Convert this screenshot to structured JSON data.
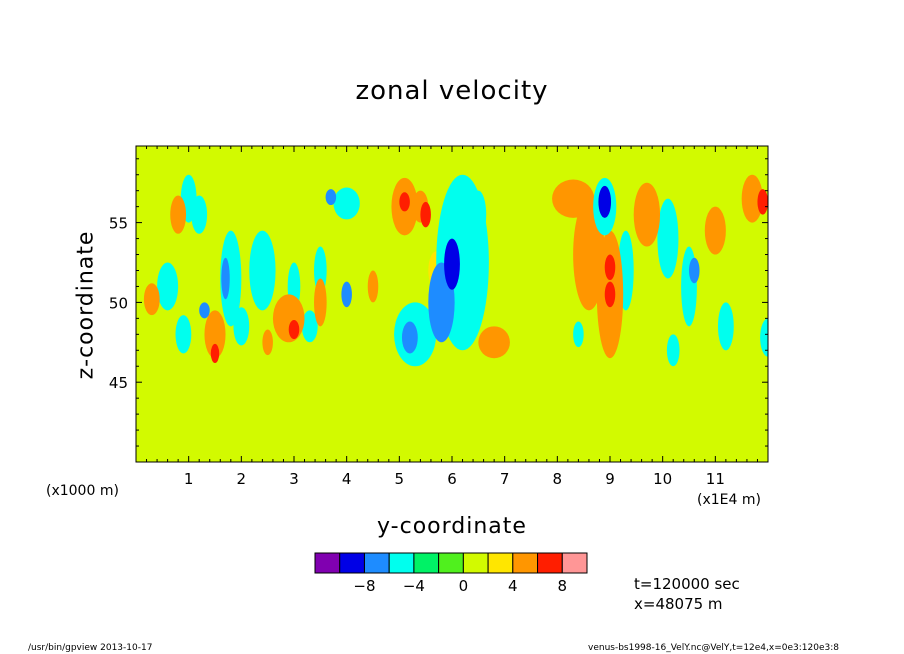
{
  "chart_data": {
    "type": "heatmap",
    "title": "zonal velocity",
    "xlabel": "y-coordinate",
    "ylabel": "z-coordinate",
    "x_unit_label": "(x1000 m)",
    "y_unit_label": "(x1E4 m)",
    "xlim": [
      0,
      120
    ],
    "ylim": [
      40,
      59.8
    ],
    "x_ticks": [
      "1",
      "2",
      "3",
      "4",
      "5",
      "6",
      "7",
      "8",
      "9",
      "10",
      "11"
    ],
    "y_ticks": [
      "45",
      "50",
      "55"
    ],
    "colorbar": {
      "levels": [
        -10,
        -8,
        -6,
        -4,
        -2,
        0,
        2,
        4,
        6,
        8,
        10
      ],
      "tick_labels": [
        "-8",
        "-4",
        "0",
        "4",
        "8"
      ],
      "colors": [
        "#8000b0",
        "#0000e6",
        "#1e8cff",
        "#00ffee",
        "#00f266",
        "#50f01e",
        "#d2fa00",
        "#ffe600",
        "#ff9600",
        "#ff1e00",
        "#ff9696"
      ]
    },
    "blobs": [
      {
        "x": 40,
        "y": 56.2,
        "rx": 2.5,
        "ry": 1.0,
        "v": -5
      },
      {
        "x": 37,
        "y": 56.6,
        "rx": 1.0,
        "ry": 0.5,
        "v": -8
      },
      {
        "x": 62,
        "y": 52.5,
        "rx": 5.0,
        "ry": 5.5,
        "v": -5.5
      },
      {
        "x": 60,
        "y": 52.4,
        "rx": 1.5,
        "ry": 1.6,
        "v": -9
      },
      {
        "x": 58,
        "y": 50.0,
        "rx": 2.5,
        "ry": 2.5,
        "v": -7
      },
      {
        "x": 53,
        "y": 48.0,
        "rx": 4.0,
        "ry": 2.0,
        "v": -5
      },
      {
        "x": 52,
        "y": 47.8,
        "rx": 1.5,
        "ry": 1.0,
        "v": -7
      },
      {
        "x": 65,
        "y": 55.5,
        "rx": 1.5,
        "ry": 1.5,
        "v": -6
      },
      {
        "x": 18,
        "y": 51.5,
        "rx": 2.0,
        "ry": 3.0,
        "v": -5.5
      },
      {
        "x": 17,
        "y": 51.5,
        "rx": 0.8,
        "ry": 1.3,
        "v": -8
      },
      {
        "x": 13,
        "y": 49.5,
        "rx": 1.0,
        "ry": 0.5,
        "v": -7
      },
      {
        "x": 12,
        "y": 55.5,
        "rx": 1.5,
        "ry": 1.2,
        "v": -4.5
      },
      {
        "x": 9,
        "y": 48.0,
        "rx": 1.5,
        "ry": 1.2,
        "v": -5
      },
      {
        "x": 24,
        "y": 52.0,
        "rx": 2.5,
        "ry": 2.5,
        "v": -5
      },
      {
        "x": 20,
        "y": 48.5,
        "rx": 1.5,
        "ry": 1.2,
        "v": -4.5
      },
      {
        "x": 30,
        "y": 51.0,
        "rx": 1.2,
        "ry": 1.5,
        "v": -4.5
      },
      {
        "x": 35,
        "y": 52.0,
        "rx": 1.2,
        "ry": 1.5,
        "v": -4.5
      },
      {
        "x": 40,
        "y": 50.5,
        "rx": 1.0,
        "ry": 0.8,
        "v": -7
      },
      {
        "x": 89,
        "y": 56.0,
        "rx": 2.2,
        "ry": 1.8,
        "v": -5.5
      },
      {
        "x": 89,
        "y": 56.3,
        "rx": 1.2,
        "ry": 1.0,
        "v": -8.5
      },
      {
        "x": 93,
        "y": 52.0,
        "rx": 1.5,
        "ry": 2.5,
        "v": -5
      },
      {
        "x": 105,
        "y": 51.0,
        "rx": 1.5,
        "ry": 2.5,
        "v": -5
      },
      {
        "x": 106,
        "y": 52.0,
        "rx": 1.0,
        "ry": 0.8,
        "v": -7.5
      },
      {
        "x": 101,
        "y": 54.0,
        "rx": 2.0,
        "ry": 2.5,
        "v": -4.5
      },
      {
        "x": 102,
        "y": 47.0,
        "rx": 1.2,
        "ry": 1.0,
        "v": -4.5
      },
      {
        "x": 120,
        "y": 47.8,
        "rx": 1.5,
        "ry": 1.2,
        "v": -4.5
      },
      {
        "x": 112,
        "y": 48.5,
        "rx": 1.5,
        "ry": 1.5,
        "v": -4.5
      },
      {
        "x": 84,
        "y": 48.0,
        "rx": 1.0,
        "ry": 0.8,
        "v": -5
      },
      {
        "x": 33,
        "y": 48.5,
        "rx": 1.5,
        "ry": 1.0,
        "v": -4.5
      },
      {
        "x": 10,
        "y": 56.5,
        "rx": 1.5,
        "ry": 1.5,
        "v": -4.5
      },
      {
        "x": 6,
        "y": 51.0,
        "rx": 2.0,
        "ry": 1.5,
        "v": -4.5
      },
      {
        "x": 51,
        "y": 56.0,
        "rx": 2.5,
        "ry": 1.8,
        "v": 4.5
      },
      {
        "x": 54,
        "y": 56.0,
        "rx": 1.5,
        "ry": 1.0,
        "v": 5.5
      },
      {
        "x": 51,
        "y": 56.3,
        "rx": 1.0,
        "ry": 0.6,
        "v": 6.5
      },
      {
        "x": 55,
        "y": 55.5,
        "rx": 1.0,
        "ry": 0.8,
        "v": 7
      },
      {
        "x": 83,
        "y": 56.5,
        "rx": 4.0,
        "ry": 1.2,
        "v": 4.5
      },
      {
        "x": 86,
        "y": 53.0,
        "rx": 3.0,
        "ry": 3.5,
        "v": 4.5
      },
      {
        "x": 90,
        "y": 50.5,
        "rx": 2.5,
        "ry": 4.0,
        "v": 5
      },
      {
        "x": 90,
        "y": 52.2,
        "rx": 1.0,
        "ry": 0.8,
        "v": 6.5
      },
      {
        "x": 90,
        "y": 50.5,
        "rx": 1.0,
        "ry": 0.8,
        "v": 6.5
      },
      {
        "x": 97,
        "y": 55.5,
        "rx": 2.5,
        "ry": 2.0,
        "v": 4.5
      },
      {
        "x": 117,
        "y": 56.5,
        "rx": 2.0,
        "ry": 1.5,
        "v": 4.5
      },
      {
        "x": 119,
        "y": 56.3,
        "rx": 1.0,
        "ry": 0.8,
        "v": 6.5
      },
      {
        "x": 29,
        "y": 49.0,
        "rx": 3.0,
        "ry": 1.5,
        "v": 4.5
      },
      {
        "x": 30,
        "y": 48.3,
        "rx": 1.0,
        "ry": 0.6,
        "v": 6.5
      },
      {
        "x": 35,
        "y": 50.0,
        "rx": 1.2,
        "ry": 1.5,
        "v": 4.5
      },
      {
        "x": 15,
        "y": 48.0,
        "rx": 2.0,
        "ry": 1.5,
        "v": 4.5
      },
      {
        "x": 15,
        "y": 46.8,
        "rx": 0.8,
        "ry": 0.6,
        "v": 6.5
      },
      {
        "x": 8,
        "y": 55.5,
        "rx": 1.5,
        "ry": 1.2,
        "v": 4.5
      },
      {
        "x": 3,
        "y": 50.2,
        "rx": 1.5,
        "ry": 1.0,
        "v": 4.5
      },
      {
        "x": 45,
        "y": 51.0,
        "rx": 1.0,
        "ry": 1.0,
        "v": 4.5
      },
      {
        "x": 68,
        "y": 47.5,
        "rx": 3.0,
        "ry": 1.0,
        "v": 4.5
      },
      {
        "x": 57,
        "y": 52.0,
        "rx": 1.5,
        "ry": 1.2,
        "v": 3.5
      },
      {
        "x": 25,
        "y": 47.5,
        "rx": 1.0,
        "ry": 0.8,
        "v": 4.5
      },
      {
        "x": 110,
        "y": 54.5,
        "rx": 2.0,
        "ry": 1.5,
        "v": 4
      }
    ]
  },
  "labels": {
    "title": "zonal velocity",
    "xlabel": "y-coordinate",
    "ylabel": "z-coordinate",
    "x_unit": "(x1000 m)",
    "y_unit": "(x1E4 m)"
  },
  "info": {
    "time": "t=120000 sec",
    "position": "x=48075 m"
  },
  "footer": {
    "left": "/usr/bin/gpview   2013-10-17",
    "right": "venus-bs1998-16_VelY.nc@VelY,t=12e4,x=0e3:120e3:8"
  }
}
